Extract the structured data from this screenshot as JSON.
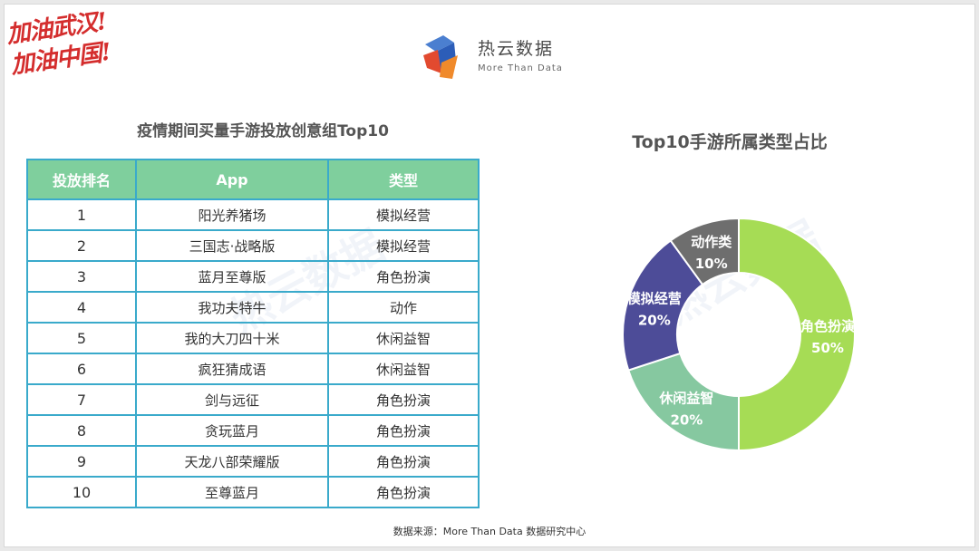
{
  "slogan": {
    "line1": "加油武汉!",
    "line2": "加油中国!"
  },
  "brand": {
    "name": "热云数据",
    "tagline": "More Than Data"
  },
  "watermark": {
    "text": "热云数据",
    "sub": "More Than Data"
  },
  "table": {
    "title": "疫情期间买量手游投放创意组Top10",
    "headers": [
      "投放排名",
      "App",
      "类型"
    ],
    "rows": [
      {
        "rank": "1",
        "app": "阳光养猪场",
        "type": "模拟经营"
      },
      {
        "rank": "2",
        "app": "三国志·战略版",
        "type": "模拟经营"
      },
      {
        "rank": "3",
        "app": "蓝月至尊版",
        "type": "角色扮演"
      },
      {
        "rank": "4",
        "app": "我功夫特牛",
        "type": "动作"
      },
      {
        "rank": "5",
        "app": "我的大刀四十米",
        "type": "休闲益智"
      },
      {
        "rank": "6",
        "app": "疯狂猜成语",
        "type": "休闲益智"
      },
      {
        "rank": "7",
        "app": "剑与远征",
        "type": "角色扮演"
      },
      {
        "rank": "8",
        "app": "贪玩蓝月",
        "type": "角色扮演"
      },
      {
        "rank": "9",
        "app": "天龙八部荣耀版",
        "type": "角色扮演"
      },
      {
        "rank": "10",
        "app": "至尊蓝月",
        "type": "角色扮演"
      }
    ]
  },
  "chart_data": {
    "type": "pie",
    "title": "Top10手游所属类型占比",
    "donut": true,
    "slices": [
      {
        "label": "角色扮演",
        "value": 50,
        "display": "50%",
        "color": "#a6dc55"
      },
      {
        "label": "休闲益智",
        "value": 20,
        "display": "20%",
        "color": "#86c8a0"
      },
      {
        "label": "模拟经营",
        "value": 20,
        "display": "20%",
        "color": "#4d4c98"
      },
      {
        "label": "动作类",
        "value": 10,
        "display": "10%",
        "color": "#6e6e6e"
      }
    ]
  },
  "source": "数据来源：More Than Data 数据研究中心"
}
